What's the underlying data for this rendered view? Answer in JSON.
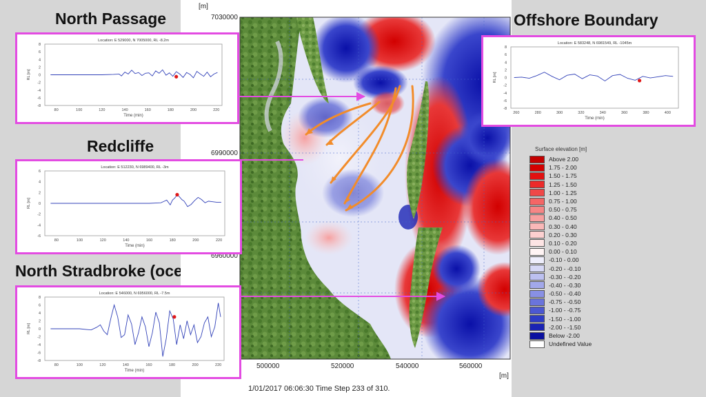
{
  "titles": {
    "north_passage": "North Passage",
    "offshore": "Offshore Boundary",
    "redcliffe": "Redcliffe",
    "stradbroke": "North Stradbroke (ocean side)"
  },
  "map": {
    "unit_top": "[m]",
    "unit_right": "[m]",
    "y_ticks": [
      "7030000",
      "6990000",
      "6960000"
    ],
    "x_ticks": [
      "500000",
      "520000",
      "540000",
      "560000"
    ],
    "footer": "1/01/2017 06:06:30  Time Step 233 of 310."
  },
  "legend": {
    "title": "Surface elevation [m]",
    "items": [
      {
        "label": "Above  2.00",
        "color": "#c40000"
      },
      {
        "label": "1.75 - 2.00",
        "color": "#d40000"
      },
      {
        "label": "1.50 - 1.75",
        "color": "#e21010"
      },
      {
        "label": "1.25 - 1.50",
        "color": "#ec2a2a"
      },
      {
        "label": "1.00 - 1.25",
        "color": "#f04848"
      },
      {
        "label": "0.75 - 1.00",
        "color": "#f46666"
      },
      {
        "label": "0.50 - 0.75",
        "color": "#f68686"
      },
      {
        "label": "0.40 - 0.50",
        "color": "#f8a0a0"
      },
      {
        "label": "0.30 - 0.40",
        "color": "#fab8b8"
      },
      {
        "label": "0.20 - 0.30",
        "color": "#fcd0d0"
      },
      {
        "label": "0.10 - 0.20",
        "color": "#fde4e4"
      },
      {
        "label": "0.00 - 0.10",
        "color": "#fff4f4"
      },
      {
        "label": "-0.10 - 0.00",
        "color": "#eeeefc"
      },
      {
        "label": "-0.20 - -0.10",
        "color": "#d6d8f6"
      },
      {
        "label": "-0.30 - -0.20",
        "color": "#bcc0f0"
      },
      {
        "label": "-0.40 - -0.30",
        "color": "#a2a8ea"
      },
      {
        "label": "-0.50 - -0.40",
        "color": "#8890e4"
      },
      {
        "label": "-0.75 - -0.50",
        "color": "#6a74dc"
      },
      {
        "label": "-1.00 - -0.75",
        "color": "#4c58d2"
      },
      {
        "label": "-1.50 - -1.00",
        "color": "#2e3cc6"
      },
      {
        "label": "-2.00 - -1.50",
        "color": "#1a24b4"
      },
      {
        "label": "Below  -2.00",
        "color": "#0a10a0"
      },
      {
        "label": "Undefined Value",
        "color": "#ffffff"
      }
    ]
  },
  "chart_data": [
    {
      "type": "line",
      "panel": "North Passage",
      "title": "Location: E 529000, N 7005000, RL -8.2m",
      "xlabel": "Time (min)",
      "ylabel": "RL [m]",
      "x_ticks": [
        80,
        100,
        120,
        140,
        160,
        180,
        200,
        220
      ],
      "y_ticks": [
        -8,
        -6,
        -4,
        -2,
        0,
        2,
        4,
        6,
        8
      ],
      "xlim": [
        70,
        225
      ],
      "ylim": [
        -8,
        8
      ],
      "x": [
        75,
        100,
        120,
        130,
        135,
        137,
        140,
        143,
        146,
        149,
        152,
        155,
        158,
        161,
        164,
        167,
        170,
        173,
        176,
        179,
        182,
        185,
        188,
        191,
        194,
        197,
        200,
        203,
        206,
        209,
        212,
        215,
        218,
        221
      ],
      "y": [
        0,
        0,
        0,
        0.1,
        0.2,
        -0.3,
        0.7,
        0.2,
        1.2,
        0.3,
        0.6,
        -0.2,
        0.4,
        0.5,
        -0.3,
        1.0,
        0.4,
        1.3,
        -0.1,
        0.5,
        -0.4,
        0.8,
        0.2,
        -0.7,
        0.6,
        0.1,
        -0.8,
        0.9,
        0.2,
        -0.4,
        0.7,
        -0.5,
        0.2,
        0.6
      ],
      "marker": {
        "x": 185,
        "y": -0.5
      }
    },
    {
      "type": "line",
      "panel": "Offshore Boundary",
      "title": "Location: E 583248, N 6981549, RL -1045m",
      "xlabel": "Time (min)",
      "ylabel": "RL [m]",
      "x_ticks": [
        260,
        280,
        300,
        320,
        340,
        360,
        380,
        400
      ],
      "y_ticks": [
        -8,
        -6,
        -4,
        -2,
        0,
        2,
        4,
        6,
        8
      ],
      "xlim": [
        255,
        410
      ],
      "ylim": [
        -8,
        8
      ],
      "x": [
        258,
        265,
        272,
        279,
        286,
        293,
        300,
        307,
        314,
        321,
        328,
        335,
        342,
        349,
        356,
        363,
        370,
        377,
        384,
        391,
        398,
        405
      ],
      "y": [
        0,
        0.1,
        -0.2,
        0.5,
        1.4,
        0.3,
        -0.6,
        0.6,
        0.9,
        -0.3,
        0.7,
        0.4,
        -0.9,
        0.5,
        0.8,
        -0.2,
        -0.7,
        0.3,
        -0.1,
        0.2,
        0.5,
        0.3
      ],
      "marker": {
        "x": 374,
        "y": -0.8
      }
    },
    {
      "type": "line",
      "panel": "Redcliffe",
      "title": "Location: E 512230, N 6989400, RL -3m",
      "xlabel": "Time (min)",
      "ylabel": "RL [m]",
      "x_ticks": [
        80,
        100,
        120,
        140,
        160,
        180,
        200,
        220
      ],
      "y_ticks": [
        -6,
        -4,
        -2,
        0,
        2,
        4,
        6
      ],
      "xlim": [
        70,
        225
      ],
      "ylim": [
        -6,
        6
      ],
      "x": [
        75,
        100,
        120,
        140,
        160,
        170,
        172,
        175,
        178,
        180,
        182,
        184,
        186,
        188,
        190,
        193,
        196,
        199,
        202,
        205,
        208,
        211,
        214,
        218,
        222
      ],
      "y": [
        0,
        0,
        0,
        0,
        0,
        0.1,
        0.3,
        0.6,
        -0.3,
        0.6,
        1.0,
        1.6,
        1.2,
        0.7,
        0.4,
        -0.6,
        -0.2,
        0.5,
        1.1,
        0.7,
        0.1,
        0.4,
        0.3,
        0.2,
        0.2
      ],
      "marker": {
        "x": 184,
        "y": 1.6
      }
    },
    {
      "type": "line",
      "panel": "North Stradbroke (ocean side)",
      "title": "Location: E 546000, N 6956000, RL -7.5m",
      "xlabel": "Time (min)",
      "ylabel": "RL [m]",
      "x_ticks": [
        80,
        100,
        120,
        140,
        160,
        180,
        200,
        220
      ],
      "y_ticks": [
        -8,
        -6,
        -4,
        -2,
        0,
        2,
        4,
        6,
        8
      ],
      "xlim": [
        70,
        225
      ],
      "ylim": [
        -8,
        8
      ],
      "x": [
        75,
        100,
        110,
        115,
        118,
        121,
        124,
        127,
        130,
        133,
        136,
        139,
        142,
        145,
        148,
        151,
        154,
        157,
        160,
        163,
        166,
        169,
        172,
        175,
        178,
        181,
        184,
        187,
        190,
        193,
        196,
        199,
        202,
        205,
        208,
        211,
        214,
        217,
        220,
        222
      ],
      "y": [
        0,
        0,
        -0.3,
        0.4,
        1.0,
        -0.6,
        -1.5,
        2.5,
        6.0,
        3.0,
        -2.2,
        -1.5,
        3.5,
        1.2,
        -4.0,
        -1.0,
        3.0,
        0.5,
        -4.5,
        -1.0,
        4.2,
        1.5,
        -7.0,
        -2.5,
        4.5,
        2.5,
        -4.0,
        1.0,
        -2.5,
        2.0,
        -1.5,
        1.0,
        -3.5,
        -2.0,
        1.5,
        3.0,
        -2.0,
        0.5,
        6.5,
        3.0
      ],
      "marker": {
        "x": 182,
        "y": 3.0
      }
    }
  ]
}
